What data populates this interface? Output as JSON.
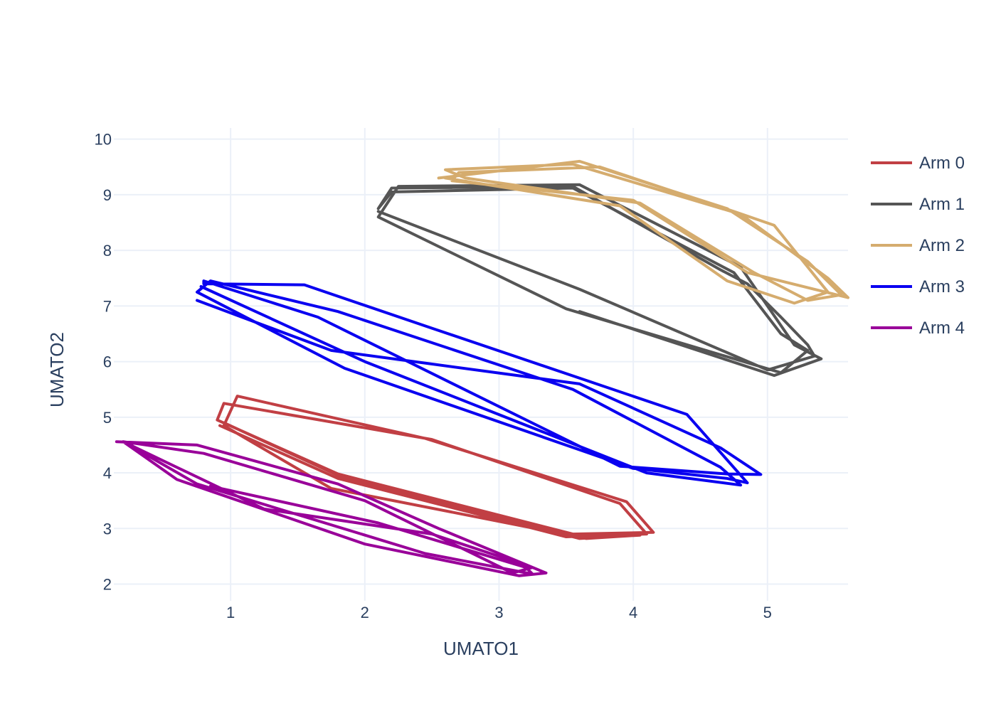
{
  "chart_data": {
    "type": "line",
    "xlabel": "UMATO1",
    "ylabel": "UMATO2",
    "xlim": [
      0.13,
      5.6
    ],
    "ylim": [
      1.7,
      10.2
    ],
    "x_ticks": [
      1,
      2,
      3,
      4,
      5
    ],
    "y_ticks": [
      2,
      3,
      4,
      5,
      6,
      7,
      8,
      9,
      10
    ],
    "grid": true,
    "legend_position": "right",
    "series": [
      {
        "name": "Arm 0",
        "color": "#c13f44",
        "x": [
          0.95,
          1.85,
          3.6,
          4.05,
          3.65,
          1.75,
          0.95,
          1.05,
          2.45,
          3.95,
          4.15,
          3.55,
          1.8,
          0.9,
          0.95,
          2.5,
          3.9,
          4.1,
          3.5,
          1.8,
          0.92
        ],
        "y": [
          4.9,
          3.9,
          2.82,
          2.88,
          2.82,
          3.72,
          4.85,
          5.38,
          4.62,
          3.48,
          2.93,
          2.9,
          3.98,
          4.95,
          5.25,
          4.6,
          3.45,
          2.9,
          2.85,
          3.9,
          4.85
        ]
      },
      {
        "name": "Arm 1",
        "color": "#555555",
        "x": [
          2.1,
          3.6,
          5.0,
          5.35,
          5.3,
          5.1,
          4.85,
          4.65,
          3.55,
          2.2,
          2.1,
          2.2,
          3.55,
          4.75,
          5.1,
          5.3,
          5.1,
          3.5,
          2.1,
          2.25,
          3.6,
          4.8,
          5.2,
          5.4,
          5.05,
          3.6
        ],
        "y": [
          8.7,
          7.3,
          5.85,
          6.1,
          6.3,
          6.8,
          7.4,
          7.65,
          9.15,
          9.12,
          8.75,
          9.05,
          9.12,
          7.6,
          6.5,
          6.2,
          5.8,
          6.95,
          8.6,
          9.15,
          9.18,
          7.7,
          6.3,
          6.05,
          5.75,
          6.9
        ]
      },
      {
        "name": "Arm 2",
        "color": "#d5ac6e",
        "x": [
          2.55,
          3.6,
          4.7,
          5.3,
          5.55,
          5.3,
          4.9,
          4.05,
          2.75,
          2.6,
          3.55,
          4.8,
          5.45,
          5.6,
          4.85,
          4.0,
          2.65,
          2.7,
          3.75,
          4.75,
          5.05,
          5.45,
          5.2,
          4.7,
          3.9,
          2.6
        ],
        "y": [
          9.3,
          9.6,
          8.75,
          7.8,
          7.2,
          7.1,
          7.6,
          8.85,
          9.3,
          9.45,
          9.55,
          8.65,
          7.5,
          7.15,
          7.6,
          8.9,
          9.25,
          9.4,
          9.5,
          8.7,
          8.45,
          7.25,
          7.05,
          7.45,
          8.8,
          9.3
        ]
      },
      {
        "name": "Arm 3",
        "color": "#0a00f0",
        "x": [
          0.75,
          1.75,
          3.6,
          4.65,
          4.95,
          4.7,
          3.9,
          1.65,
          0.8,
          0.8,
          1.55,
          2.5,
          4.4,
          4.85,
          4.7,
          4.0,
          1.85,
          0.75,
          0.85,
          1.8,
          3.55,
          4.65,
          4.8,
          4.1,
          2.0,
          0.78
        ],
        "y": [
          7.1,
          6.2,
          5.6,
          4.45,
          3.97,
          3.98,
          4.12,
          6.8,
          7.45,
          7.4,
          7.38,
          6.6,
          5.05,
          3.82,
          3.9,
          4.08,
          5.88,
          7.25,
          7.45,
          6.9,
          5.5,
          4.1,
          3.78,
          4.0,
          6.0,
          7.35
        ]
      },
      {
        "name": "Arm 4",
        "color": "#990099",
        "x": [
          0.15,
          0.75,
          1.8,
          2.55,
          3.2,
          3.35,
          3.15,
          2.0,
          0.6,
          0.2,
          0.8,
          2.0,
          3.1,
          3.25,
          2.5,
          1.25,
          0.2,
          0.75,
          2.45,
          3.25,
          3.2,
          2.1,
          0.85
        ],
        "y": [
          4.56,
          4.5,
          3.8,
          3.0,
          2.35,
          2.2,
          2.15,
          2.72,
          3.88,
          4.56,
          4.35,
          3.5,
          2.2,
          2.3,
          2.9,
          3.35,
          4.56,
          3.8,
          2.55,
          2.18,
          2.3,
          3.1,
          3.76
        ]
      }
    ]
  }
}
